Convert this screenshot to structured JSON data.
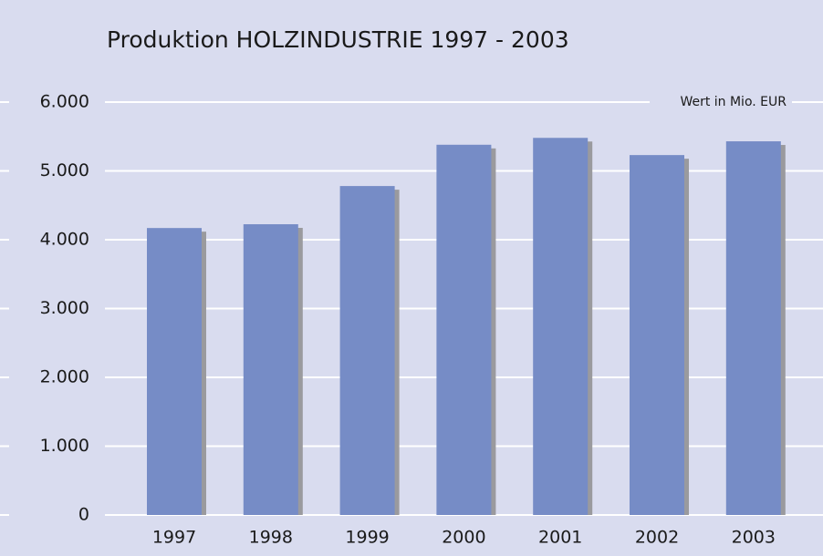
{
  "chart_data": {
    "type": "bar",
    "title": "Produktion HOLZINDUSTRIE 1997 - 2003",
    "annotation": "Wert in Mio. EUR",
    "categories": [
      "1997",
      "1998",
      "1999",
      "2000",
      "2001",
      "2002",
      "2003"
    ],
    "values": [
      4170,
      4225,
      4780,
      5380,
      5480,
      5230,
      5430
    ],
    "color": "#768cc6",
    "ylim": [
      0,
      6000
    ],
    "yticks": [
      0,
      {
        "value": 1000,
        "label": "1.000"
      },
      {
        "value": 2000,
        "label": "2.000"
      },
      {
        "value": 3000,
        "label": "3.000"
      },
      {
        "value": 4000,
        "label": "4.000"
      },
      {
        "value": 5000,
        "label": "5.000"
      },
      {
        "value": 6000,
        "label": "6.000"
      }
    ],
    "grid": true
  }
}
